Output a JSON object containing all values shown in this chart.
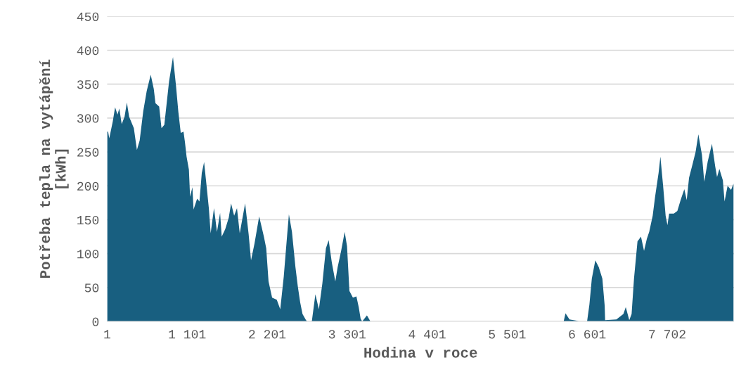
{
  "chart_data": {
    "type": "area",
    "xlabel": "Hodina v roce",
    "ylabel": "Potřeba tepla na vytápění\n[kWh]",
    "x": [
      1,
      14,
      30,
      78,
      110,
      143,
      168,
      201,
      240,
      272,
      303,
      368,
      410,
      448,
      497,
      545,
      600,
      642,
      665,
      716,
      748,
      787,
      852,
      906,
      948,
      980,
      1013,
      1051,
      1071,
      1093,
      1125,
      1141,
      1173,
      1189,
      1238,
      1270,
      1302,
      1334,
      1366,
      1399,
      1424,
      1470,
      1511,
      1554,
      1576,
      1624,
      1673,
      1705,
      1747,
      1786,
      1824,
      1898,
      1946,
      1979,
      2027,
      2091,
      2156,
      2188,
      2220,
      2269,
      2333,
      2381,
      2429,
      2477,
      2500,
      2542,
      2590,
      2622,
      2655,
      2687,
      2735,
      2752,
      2815,
      2864,
      2912,
      2960,
      3009,
      3047,
      3090,
      3138,
      3170,
      3218,
      3267,
      3299,
      3332,
      3380,
      3428,
      3460,
      3486,
      3508,
      3573,
      3621,
      6278,
      6303,
      6358,
      6455,
      6487,
      6600,
      6632,
      6665,
      6713,
      6761,
      6810,
      6842,
      6848,
      7003,
      7099,
      7132,
      7180,
      7212,
      7245,
      7293,
      7341,
      7383,
      7422,
      7454,
      7502,
      7535,
      7583,
      7608,
      7647,
      7680,
      7705,
      7728,
      7792,
      7841,
      7889,
      7937,
      7970,
      8002,
      8050,
      8092,
      8130,
      8179,
      8211,
      8259,
      8317,
      8361,
      8387,
      8419,
      8467,
      8490,
      8532,
      8580,
      8613
    ],
    "values": [
      280,
      280,
      270,
      295,
      316,
      305,
      314,
      291,
      302,
      323,
      302,
      285,
      253,
      267,
      310,
      340,
      364,
      343,
      322,
      317,
      285,
      290,
      354,
      390,
      347,
      309,
      278,
      280,
      264,
      243,
      224,
      184,
      198,
      165,
      181,
      177,
      219,
      235,
      202,
      167,
      130,
      167,
      132,
      160,
      125,
      136,
      153,
      174,
      156,
      167,
      130,
      174,
      129,
      90,
      115,
      155,
      125,
      108,
      59,
      35,
      32,
      18,
      66,
      129,
      158,
      132,
      80,
      52,
      28,
      11,
      2,
      0,
      0,
      40,
      18,
      56,
      108,
      120,
      87,
      59,
      80,
      104,
      132,
      111,
      45,
      35,
      37,
      21,
      4,
      0,
      9,
      0,
      0,
      12,
      3,
      1,
      0,
      0,
      25,
      63,
      90,
      80,
      63,
      23,
      2,
      3,
      11,
      21,
      2,
      11,
      63,
      118,
      125,
      104,
      122,
      132,
      156,
      184,
      219,
      243,
      198,
      156,
      142,
      159,
      159,
      163,
      180,
      195,
      179,
      212,
      232,
      250,
      276,
      246,
      206,
      236,
      262,
      229,
      213,
      225,
      208,
      177,
      200,
      194,
      203
    ],
    "color": "#185f80",
    "xlim": [
      1,
      8620
    ],
    "xticks": [
      1,
      {
        "value": 1101,
        "label": "1 101"
      },
      {
        "value": 2201,
        "label": "2 201"
      },
      {
        "value": 3301,
        "label": "3 301"
      },
      {
        "value": 4401,
        "label": "4 401"
      },
      {
        "value": 5501,
        "label": "5 501"
      },
      {
        "value": 6601,
        "label": "6 601"
      },
      {
        "value": 7702,
        "label": "7 702"
      }
    ],
    "ylim": [
      0,
      450
    ],
    "yticks": [
      0,
      50,
      100,
      150,
      200,
      250,
      300,
      350,
      400,
      450
    ],
    "grid": "y"
  }
}
